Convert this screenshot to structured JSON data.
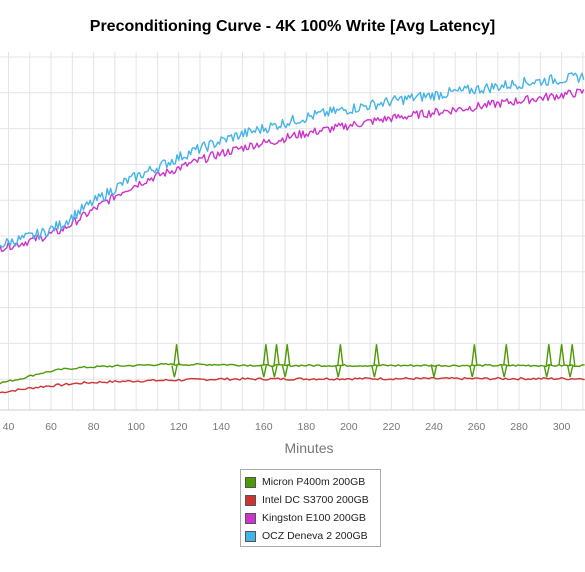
{
  "chart_data": {
    "type": "line",
    "title": "Preconditioning Curve - 4K 100% Write [Avg Latency]",
    "xlabel": "Minutes",
    "ylabel": "",
    "x_ticks": [
      40,
      60,
      80,
      100,
      120,
      140,
      160,
      180,
      200,
      220,
      240,
      260,
      280,
      300
    ],
    "xlim": [
      36,
      311
    ],
    "grid": true,
    "legend_position": "bottom-center",
    "series": [
      {
        "name": "Micron P400m 200GB",
        "color": "#4e9a06",
        "points": [
          [
            36,
            3.9
          ],
          [
            45,
            4.1
          ],
          [
            55,
            4.4
          ],
          [
            65,
            4.6
          ],
          [
            75,
            4.7
          ],
          [
            85,
            4.75
          ],
          [
            100,
            4.8
          ],
          [
            110,
            4.85
          ],
          [
            120,
            4.85
          ],
          [
            140,
            4.85
          ],
          [
            160,
            4.8
          ],
          [
            180,
            4.8
          ],
          [
            200,
            4.8
          ],
          [
            220,
            4.8
          ],
          [
            240,
            4.8
          ],
          [
            260,
            4.8
          ],
          [
            280,
            4.8
          ],
          [
            300,
            4.8
          ],
          [
            311,
            4.8
          ]
        ],
        "spikes_up": [
          119,
          161,
          166,
          171,
          196,
          213,
          259,
          274,
          294,
          300,
          305
        ],
        "spikes_down": [
          118,
          160,
          165,
          170,
          195,
          212,
          240,
          258,
          273,
          293,
          304
        ]
      },
      {
        "name": "Intel DC S3700 200GB",
        "color": "#cc3333",
        "points": [
          [
            36,
            3.4
          ],
          [
            45,
            3.55
          ],
          [
            55,
            3.7
          ],
          [
            65,
            3.8
          ],
          [
            75,
            3.9
          ],
          [
            85,
            3.95
          ],
          [
            100,
            4.0
          ],
          [
            120,
            4.05
          ],
          [
            140,
            4.1
          ],
          [
            160,
            4.1
          ],
          [
            200,
            4.12
          ],
          [
            240,
            4.12
          ],
          [
            280,
            4.12
          ],
          [
            311,
            4.12
          ]
        ]
      },
      {
        "name": "Kingston E100 200GB",
        "color": "#cc33cc",
        "points": [
          [
            36,
            10.9
          ],
          [
            45,
            11.1
          ],
          [
            55,
            11.4
          ],
          [
            65,
            11.8
          ],
          [
            75,
            12.5
          ],
          [
            85,
            13.2
          ],
          [
            95,
            13.9
          ],
          [
            105,
            14.4
          ],
          [
            115,
            14.8
          ],
          [
            125,
            15.2
          ],
          [
            135,
            15.6
          ],
          [
            145,
            15.9
          ],
          [
            155,
            16.2
          ],
          [
            165,
            16.4
          ],
          [
            175,
            16.7
          ],
          [
            185,
            16.9
          ],
          [
            195,
            17.1
          ],
          [
            205,
            17.3
          ],
          [
            215,
            17.5
          ],
          [
            225,
            17.65
          ],
          [
            235,
            17.8
          ],
          [
            245,
            17.95
          ],
          [
            255,
            18.1
          ],
          [
            265,
            18.25
          ],
          [
            275,
            18.4
          ],
          [
            285,
            18.55
          ],
          [
            295,
            18.7
          ],
          [
            305,
            18.85
          ],
          [
            311,
            18.95
          ]
        ]
      },
      {
        "name": "OCZ Deneva 2 200GB",
        "color": "#44b3e8",
        "points": [
          [
            36,
            11.05
          ],
          [
            45,
            11.3
          ],
          [
            55,
            11.6
          ],
          [
            65,
            12.1
          ],
          [
            75,
            12.9
          ],
          [
            85,
            13.6
          ],
          [
            95,
            14.3
          ],
          [
            105,
            14.8
          ],
          [
            115,
            15.3
          ],
          [
            125,
            15.8
          ],
          [
            135,
            16.2
          ],
          [
            145,
            16.6
          ],
          [
            155,
            16.9
          ],
          [
            165,
            17.2
          ],
          [
            175,
            17.5
          ],
          [
            185,
            17.75
          ],
          [
            195,
            17.95
          ],
          [
            205,
            18.15
          ],
          [
            215,
            18.35
          ],
          [
            225,
            18.55
          ],
          [
            235,
            18.7
          ],
          [
            245,
            18.85
          ],
          [
            255,
            19.0
          ],
          [
            265,
            19.15
          ],
          [
            275,
            19.3
          ],
          [
            285,
            19.45
          ],
          [
            295,
            19.55
          ],
          [
            305,
            19.65
          ],
          [
            311,
            19.75
          ]
        ]
      }
    ]
  }
}
